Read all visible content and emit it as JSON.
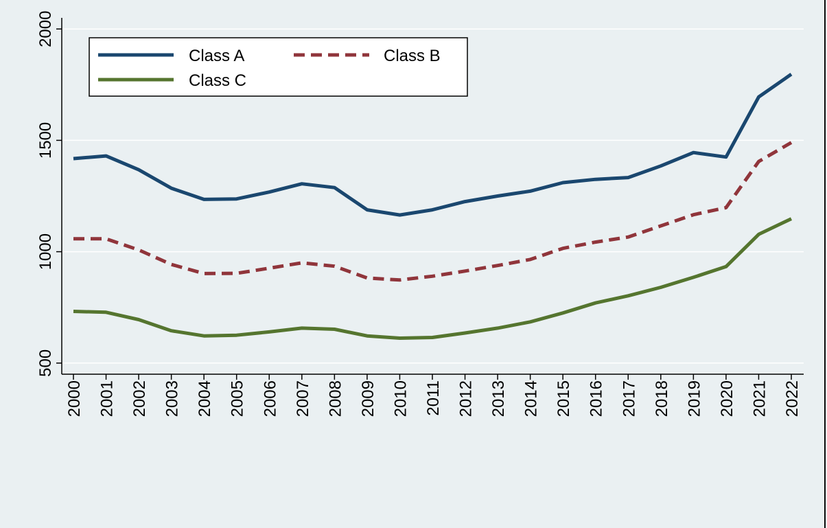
{
  "chart_data": {
    "type": "line",
    "title": "",
    "xlabel": "",
    "ylabel": "",
    "categories": [
      "2000",
      "2001",
      "2002",
      "2003",
      "2004",
      "2005",
      "2006",
      "2007",
      "2008",
      "2009",
      "2010",
      "2011",
      "2012",
      "2013",
      "2014",
      "2015",
      "2016",
      "2017",
      "2018",
      "2019",
      "2020",
      "2021",
      "2022"
    ],
    "ylim": [
      450,
      2050
    ],
    "yticks": [
      500,
      1000,
      1500,
      2000
    ],
    "grid": true,
    "legend_position": "top-left",
    "series": [
      {
        "name": "Class A",
        "color": "#1a476f",
        "style": "solid",
        "values": [
          1418,
          1430,
          1368,
          1285,
          1235,
          1237,
          1268,
          1305,
          1288,
          1188,
          1165,
          1188,
          1225,
          1250,
          1272,
          1310,
          1325,
          1333,
          1385,
          1445,
          1425,
          1695,
          1797
        ]
      },
      {
        "name": "Class B",
        "color": "#90353b",
        "style": "dashed",
        "values": [
          1058,
          1058,
          1008,
          943,
          902,
          903,
          926,
          950,
          935,
          882,
          873,
          890,
          913,
          938,
          965,
          1015,
          1043,
          1066,
          1116,
          1166,
          1198,
          1405,
          1490
        ]
      },
      {
        "name": "Class C",
        "color": "#55752f",
        "style": "solid",
        "values": [
          732,
          728,
          695,
          645,
          622,
          625,
          640,
          657,
          652,
          622,
          612,
          615,
          635,
          657,
          685,
          725,
          770,
          802,
          840,
          885,
          933,
          1078,
          1148
        ]
      }
    ]
  }
}
